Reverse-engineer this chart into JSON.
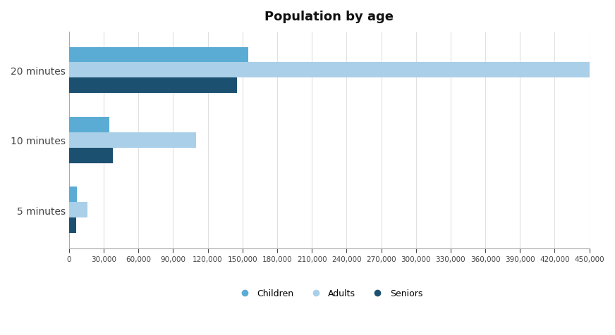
{
  "title": "Population by age",
  "categories": [
    "5 minutes",
    "10 minutes",
    "20 minutes"
  ],
  "series": [
    {
      "name": "Children",
      "color": "#5BACD4",
      "values": [
        7000,
        35000,
        155000
      ]
    },
    {
      "name": "Adults",
      "color": "#AACFE8",
      "values": [
        16000,
        110000,
        450000
      ]
    },
    {
      "name": "Seniors",
      "color": "#1C5070",
      "values": [
        6000,
        38000,
        145000
      ]
    }
  ],
  "xlim": [
    0,
    450000
  ],
  "xticks": [
    0,
    30000,
    60000,
    90000,
    120000,
    150000,
    180000,
    210000,
    240000,
    270000,
    300000,
    330000,
    360000,
    390000,
    420000,
    450000
  ],
  "background_color": "#ffffff",
  "title_fontsize": 13,
  "bar_height": 0.22
}
